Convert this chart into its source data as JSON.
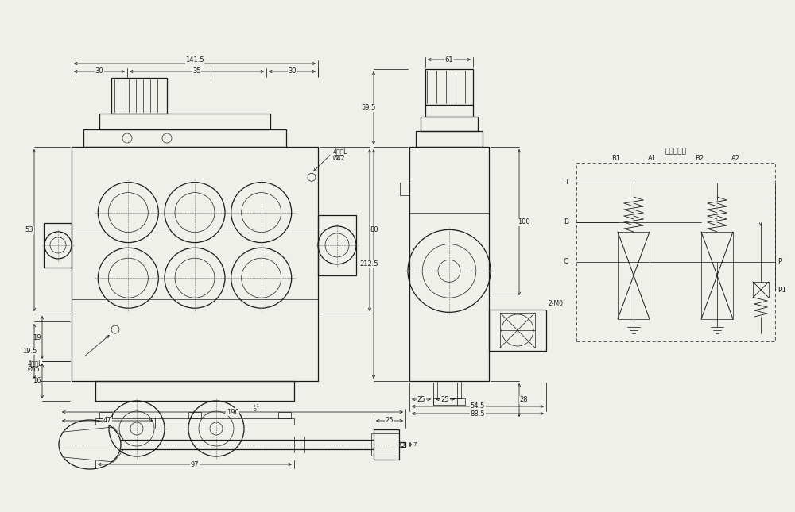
{
  "bg_color": "#f0f0eb",
  "line_color": "#1a1a1a",
  "dim_color": "#1a1a1a",
  "schematic_title": "液压原理图",
  "labels": {
    "T": "T",
    "B": "B",
    "C": "C",
    "P": "P",
    "P1": "P1",
    "B1": "B1",
    "A1": "A1",
    "B2": "B2",
    "A2": "A2",
    "total_w": "141.5",
    "w1": "30",
    "w2": "35",
    "w3": "30",
    "h53": "53",
    "h19": "19",
    "h16": "16",
    "h195": "19.5",
    "h80": "80",
    "d97": "97",
    "hole1": "4孔几L",
    "d42": "Ø42",
    "hole2": "4孔几L",
    "d55": "Ø55",
    "side_h": "212.5",
    "side_h1": "59.5",
    "side_h2": "100",
    "side_h3": "28",
    "side_w_top": "61",
    "side_w1": "25",
    "side_w2": "25",
    "side_w3": "54.5",
    "side_w_total": "88.5",
    "label_2M0": "2-M0",
    "handle_total": "190",
    "handle_tol": "+1\n 0",
    "handle_p1": "47",
    "handle_p2": "25"
  }
}
